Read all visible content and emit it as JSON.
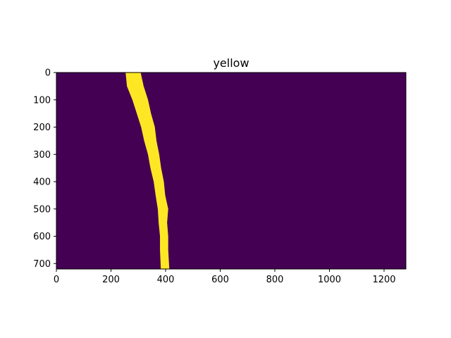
{
  "chart_data": {
    "type": "heatmap",
    "title": "yellow",
    "xlabel": "",
    "ylabel": "",
    "image_width": 1280,
    "image_height": 720,
    "xlim": [
      0,
      1280
    ],
    "ylim": [
      720,
      0
    ],
    "x_ticks": [
      0,
      200,
      400,
      600,
      800,
      1000,
      1200
    ],
    "y_ticks": [
      0,
      100,
      200,
      300,
      400,
      500,
      600,
      700
    ],
    "grid": false,
    "colors": {
      "background": "#440154",
      "mask": "#fde725",
      "axes": "#000000"
    },
    "mask_band": {
      "description_of_values": "left and right x-edges (pixels) of the yellow lane mask at each image row y",
      "rows": [
        {
          "y": 0,
          "x_left": 255,
          "x_right": 305
        },
        {
          "y": 50,
          "x_left": 262,
          "x_right": 318
        },
        {
          "y": 100,
          "x_left": 280,
          "x_right": 332
        },
        {
          "y": 150,
          "x_left": 298,
          "x_right": 345
        },
        {
          "y": 200,
          "x_left": 312,
          "x_right": 357
        },
        {
          "y": 250,
          "x_left": 325,
          "x_right": 365
        },
        {
          "y": 300,
          "x_left": 337,
          "x_right": 373
        },
        {
          "y": 350,
          "x_left": 348,
          "x_right": 382
        },
        {
          "y": 400,
          "x_left": 358,
          "x_right": 390
        },
        {
          "y": 450,
          "x_left": 367,
          "x_right": 397
        },
        {
          "y": 500,
          "x_left": 373,
          "x_right": 406
        },
        {
          "y": 550,
          "x_left": 378,
          "x_right": 404
        },
        {
          "y": 600,
          "x_left": 381,
          "x_right": 406
        },
        {
          "y": 650,
          "x_left": 383,
          "x_right": 408
        },
        {
          "y": 720,
          "x_left": 384,
          "x_right": 410
        }
      ]
    }
  }
}
